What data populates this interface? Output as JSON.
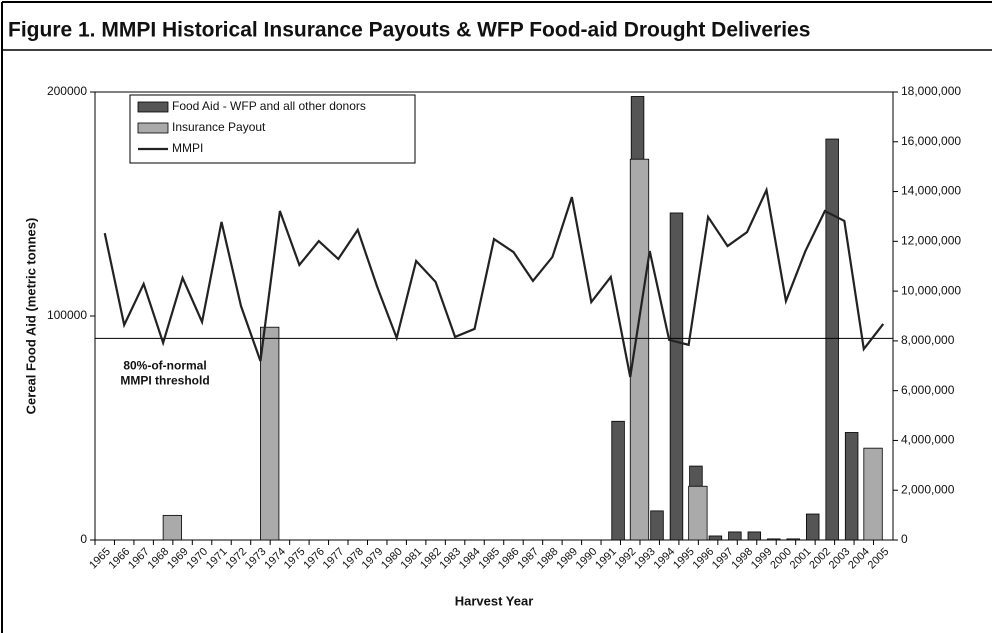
{
  "chart_data": {
    "type": "bar",
    "title": "Figure 1.  MMPI Historical Insurance Payouts & WFP Food-aid Drought Deliveries",
    "y_label": "Cereal Food Aid (metric tonnes)",
    "x_label": "Harvest Year",
    "categories": [
      "1965",
      "1966",
      "1967",
      "1968",
      "1969",
      "1970",
      "1971",
      "1972",
      "1973",
      "1974",
      "1975",
      "1976",
      "1977",
      "1978",
      "1979",
      "1980",
      "1981",
      "1982",
      "1983",
      "1984",
      "1985",
      "1986",
      "1987",
      "1988",
      "1989",
      "1990",
      "1991",
      "1992",
      "1993",
      "1994",
      "1995",
      "1996",
      "1997",
      "1998",
      "1999",
      "2000",
      "2001",
      "2002",
      "2003",
      "2004",
      "2005"
    ],
    "series": [
      {
        "name": "Food Aid - WFP and all other donors",
        "type": "bar",
        "color": "#555555",
        "values": [
          null,
          null,
          null,
          null,
          null,
          null,
          null,
          null,
          null,
          null,
          null,
          null,
          null,
          null,
          null,
          null,
          null,
          null,
          null,
          null,
          null,
          null,
          null,
          null,
          null,
          null,
          53000,
          198000,
          13000,
          146000,
          33000,
          1800,
          3600,
          3600,
          500,
          500,
          11600,
          179000,
          48000,
          null,
          null
        ]
      },
      {
        "name": "Insurance Payout",
        "type": "bar",
        "color": "#aaaaaa",
        "values": [
          null,
          null,
          null,
          11000,
          null,
          null,
          null,
          null,
          95000,
          null,
          null,
          null,
          null,
          null,
          null,
          null,
          null,
          null,
          null,
          null,
          null,
          null,
          null,
          null,
          null,
          null,
          null,
          170000,
          null,
          null,
          24000,
          null,
          null,
          null,
          null,
          null,
          null,
          null,
          null,
          41000,
          null
        ]
      },
      {
        "name": "MMPI",
        "type": "line",
        "color": "#222222",
        "axis": "y2",
        "values": [
          12330000,
          8640000,
          10290000,
          7920000,
          10530000,
          8760000,
          12780000,
          9400000,
          7190000,
          13220000,
          11050000,
          12010000,
          11290000,
          12460000,
          10170000,
          8120000,
          11210000,
          10370000,
          8160000,
          8480000,
          12090000,
          11570000,
          10410000,
          11370000,
          13780000,
          9560000,
          10570000,
          6550000,
          11610000,
          8040000,
          7840000,
          12980000,
          11810000,
          12370000,
          14060000,
          9600000,
          11610000,
          13220000,
          12820000,
          7670000,
          8680000
        ]
      }
    ],
    "ylim": [
      0,
      200000
    ],
    "yticks": [
      0,
      100000,
      200000
    ],
    "y2lim": [
      0,
      18000000
    ],
    "y2ticks": [
      0,
      {
        "value": 2000000,
        "label": "2,000,000"
      },
      {
        "value": 4000000,
        "label": "4,000,000"
      },
      {
        "value": 6000000,
        "label": "6,000,000"
      },
      {
        "value": 8000000,
        "label": "8,000,000"
      },
      {
        "value": 10000000,
        "label": "10,000,000"
      },
      {
        "value": 12000000,
        "label": "12,000,000"
      },
      {
        "value": 14000000,
        "label": "14,000,000"
      },
      {
        "value": 16000000,
        "label": "16,000,000"
      },
      {
        "value": 18000000,
        "label": "18,000,000"
      }
    ],
    "threshold": {
      "value": 8100000,
      "axis": "y2"
    },
    "annotations": [
      "80%-of-normal",
      "MMPI threshold"
    ],
    "legend": "top-left",
    "grid": false
  }
}
